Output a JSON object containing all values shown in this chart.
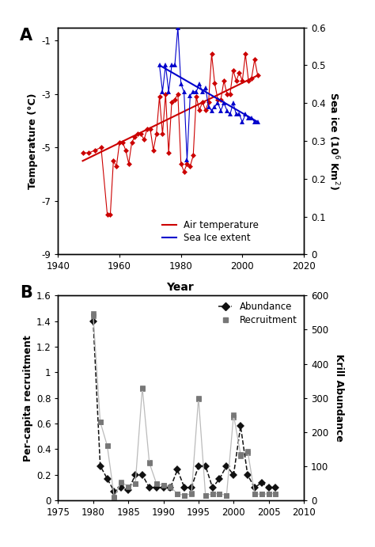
{
  "temp_years": [
    1948,
    1950,
    1952,
    1954,
    1956,
    1957,
    1958,
    1959,
    1960,
    1961,
    1962,
    1963,
    1964,
    1965,
    1966,
    1967,
    1968,
    1969,
    1970,
    1971,
    1972,
    1973,
    1974,
    1975,
    1976,
    1977,
    1978,
    1979,
    1980,
    1981,
    1982,
    1983,
    1984,
    1985,
    1986,
    1987,
    1988,
    1989,
    1990,
    1991,
    1992,
    1993,
    1994,
    1995,
    1996,
    1997,
    1998,
    1999,
    2000,
    2001,
    2002,
    2003,
    2004,
    2005
  ],
  "temp_values": [
    -5.2,
    -5.2,
    -5.1,
    -5.0,
    -7.5,
    -7.5,
    -5.5,
    -5.7,
    -4.8,
    -4.8,
    -5.1,
    -5.6,
    -4.8,
    -4.6,
    -4.5,
    -4.5,
    -4.7,
    -4.3,
    -4.3,
    -5.1,
    -4.5,
    -3.1,
    -4.5,
    -3.0,
    -5.2,
    -3.3,
    -3.2,
    -3.0,
    -5.6,
    -5.9,
    -5.6,
    -5.7,
    -5.3,
    -3.1,
    -3.6,
    -3.3,
    -3.6,
    -3.3,
    -1.5,
    -2.6,
    -3.2,
    -3.2,
    -2.5,
    -3.0,
    -3.0,
    -2.1,
    -2.5,
    -2.2,
    -2.5,
    -1.5,
    -2.5,
    -2.4,
    -1.7,
    -2.3
  ],
  "temp_trend_years": [
    1948,
    2005
  ],
  "temp_trend_values": [
    -5.5,
    -2.3
  ],
  "ice_years": [
    1973,
    1974,
    1975,
    1976,
    1977,
    1978,
    1979,
    1980,
    1981,
    1982,
    1983,
    1984,
    1985,
    1986,
    1987,
    1988,
    1989,
    1990,
    1991,
    1992,
    1993,
    1994,
    1995,
    1996,
    1997,
    1998,
    1999,
    2000,
    2001,
    2002,
    2003,
    2004,
    2005
  ],
  "ice_values": [
    0.5,
    0.43,
    0.5,
    0.43,
    0.5,
    0.5,
    0.6,
    0.45,
    0.43,
    0.25,
    0.42,
    0.43,
    0.43,
    0.45,
    0.43,
    0.44,
    0.39,
    0.38,
    0.39,
    0.4,
    0.38,
    0.4,
    0.38,
    0.37,
    0.4,
    0.37,
    0.37,
    0.35,
    0.37,
    0.36,
    0.36,
    0.35,
    0.35
  ],
  "ice_trend_years": [
    1973,
    2005
  ],
  "ice_trend_values": [
    0.5,
    0.35
  ],
  "abund_years": [
    1980,
    1981,
    1982,
    1983,
    1984,
    1985,
    1986,
    1987,
    1988,
    1989,
    1990,
    1991,
    1992,
    1993,
    1994,
    1995,
    1996,
    1997,
    1998,
    1999,
    2000,
    2001,
    2002,
    2003,
    2004,
    2005,
    2006
  ],
  "abund_values": [
    1.4,
    0.27,
    0.17,
    0.07,
    0.1,
    0.08,
    0.2,
    0.2,
    0.1,
    0.1,
    0.1,
    0.1,
    0.24,
    0.1,
    0.1,
    0.27,
    0.27,
    0.1,
    0.17,
    0.27,
    0.2,
    0.58,
    0.2,
    0.1,
    0.14,
    0.1,
    0.1
  ],
  "recruit_years": [
    1980,
    1981,
    1982,
    1983,
    1984,
    1985,
    1986,
    1987,
    1988,
    1989,
    1990,
    1991,
    1992,
    1993,
    1994,
    1995,
    1996,
    1997,
    1998,
    1999,
    2000,
    2001,
    2002,
    2003,
    2004,
    2005,
    2006
  ],
  "recruit_values": [
    1.46,
    0.61,
    0.43,
    0.02,
    0.13,
    0.1,
    0.13,
    0.87,
    0.3,
    0.13,
    0.12,
    0.1,
    0.05,
    0.04,
    0.06,
    0.79,
    0.04,
    0.05,
    0.05,
    0.04,
    0.65,
    0.35,
    0.37,
    0.05,
    0.05,
    0.05,
    0.05
  ],
  "krill_years": [
    1980,
    1981,
    1982,
    1983,
    1984,
    1985,
    1986,
    1987,
    1988,
    1989,
    1990,
    1991,
    1992,
    1993,
    1994,
    1995,
    1996,
    1997,
    1998,
    1999,
    2000,
    2001,
    2002,
    2003,
    2004,
    2005,
    2006
  ],
  "krill_values": [
    540,
    230,
    160,
    10,
    55,
    40,
    50,
    330,
    110,
    50,
    45,
    40,
    20,
    15,
    20,
    300,
    15,
    20,
    20,
    15,
    250,
    135,
    145,
    20,
    18,
    20,
    20
  ],
  "temp_color": "#cc0000",
  "ice_color": "#0000cc",
  "abund_color": "#111111",
  "recruit_color": "#777777",
  "krill_color": "#bbbbbb"
}
